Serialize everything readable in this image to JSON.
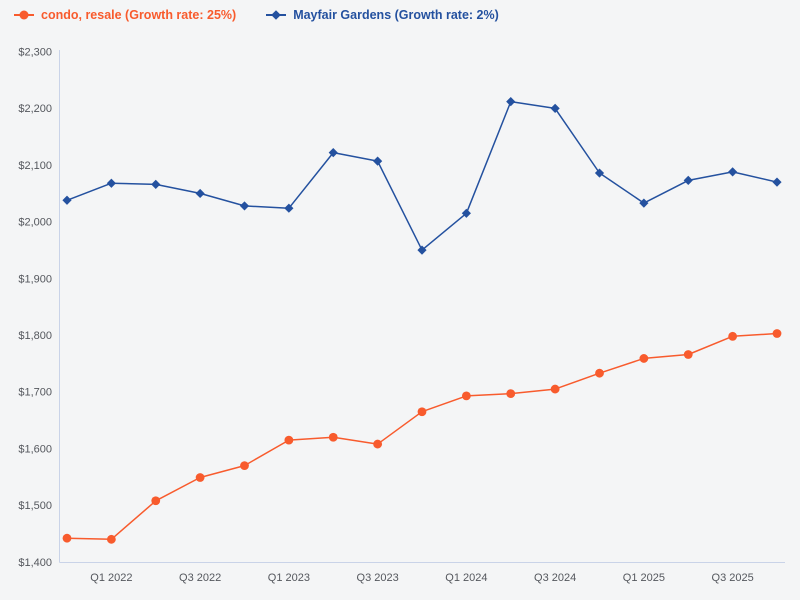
{
  "chart_data": {
    "type": "line",
    "title": "",
    "xlabel": "",
    "ylabel": "",
    "grid": false,
    "legend_position": "top-left",
    "x": [
      "Q4 2021",
      "Q1 2022",
      "Q2 2022",
      "Q3 2022",
      "Q4 2022",
      "Q1 2023",
      "Q2 2023",
      "Q3 2023",
      "Q4 2023",
      "Q1 2024",
      "Q2 2024",
      "Q3 2024",
      "Q4 2024",
      "Q1 2025",
      "Q2 2025",
      "Q3 2025",
      "Q4 2025"
    ],
    "x_tick_labels": [
      "Q1 2022",
      "Q3 2022",
      "Q1 2023",
      "Q3 2023",
      "Q1 2024",
      "Q3 2024",
      "Q1 2025",
      "Q3 2025"
    ],
    "ylim": [
      1400,
      2300
    ],
    "y_ticks": [
      "$1,400",
      "$1,500",
      "$1,600",
      "$1,700",
      "$1,800",
      "$1,900",
      "$2,000",
      "$2,100",
      "$2,200",
      "$2,300"
    ],
    "series": [
      {
        "name": "condo, resale (Growth rate: 25%)",
        "color": "#f85b2d",
        "marker": "circle",
        "values": [
          1442,
          1440,
          1508,
          1549,
          1570,
          1615,
          1620,
          1608,
          1665,
          1693,
          1697,
          1705,
          1733,
          1759,
          1766,
          1798,
          1803
        ]
      },
      {
        "name": "Mayfair Gardens (Growth rate: 2%)",
        "color": "#24519f",
        "marker": "diamond",
        "values": [
          2038,
          2068,
          2066,
          2050,
          2028,
          2024,
          2122,
          2107,
          1950,
          2015,
          2212,
          2200,
          2086,
          2033,
          2073,
          2088,
          2070
        ]
      }
    ]
  },
  "colors": {
    "background": "#f4f5f6",
    "axis_line": "#c9d3e8",
    "tick_text": "#54575d"
  }
}
